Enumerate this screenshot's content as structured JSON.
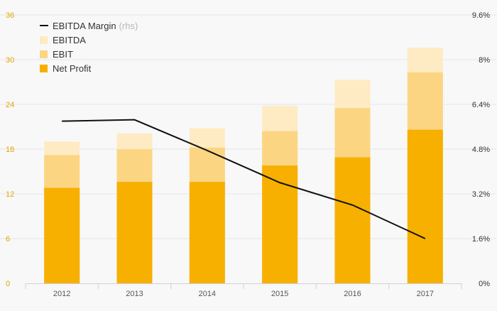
{
  "chart_data": {
    "type": "bar",
    "stacked": true,
    "categories": [
      "2012",
      "2013",
      "2014",
      "2015",
      "2016",
      "2017"
    ],
    "series": [
      {
        "name": "Net Profit",
        "kind": "bar",
        "color": "#f7b000",
        "values": [
          12.8,
          13.6,
          13.6,
          15.8,
          16.9,
          20.6
        ]
      },
      {
        "name": "EBIT",
        "kind": "bar",
        "color": "#fcd583",
        "values": [
          17.2,
          18.0,
          18.2,
          20.4,
          23.5,
          28.3
        ]
      },
      {
        "name": "EBITDA",
        "kind": "bar",
        "color": "#feebc3",
        "values": [
          19.0,
          20.1,
          20.8,
          23.8,
          27.3,
          31.6
        ]
      },
      {
        "name": "EBITDA Margin",
        "kind": "line",
        "axis": "right",
        "color": "#111111",
        "values": [
          5.8,
          5.85,
          4.75,
          3.6,
          2.8,
          1.6
        ]
      }
    ],
    "ylim": [
      0,
      36
    ],
    "yticks": [
      "0",
      "6",
      "12",
      "18",
      "24",
      "30",
      "36"
    ],
    "y2lim": [
      0,
      9.6
    ],
    "y2ticks": [
      "0%",
      "1.6%",
      "3.2%",
      "4.8%",
      "6.4%",
      "8%",
      "9.6%"
    ],
    "grid": true,
    "legend_position": "top-left",
    "legend": [
      {
        "label": "EBITDA Margin",
        "note": "(rhs)",
        "marker": "line",
        "color": "#111111"
      },
      {
        "label": "EBITDA",
        "marker": "box",
        "color": "#feebc3"
      },
      {
        "label": "EBIT",
        "marker": "box",
        "color": "#fcd583"
      },
      {
        "label": "Net Profit",
        "marker": "box",
        "color": "#f7b000"
      }
    ],
    "colors": {
      "left_tick_text": "#e5a400",
      "right_tick_text": "#333333",
      "x_tick_text": "#555555",
      "grid": "#e6e6e6",
      "axis": "#cfcfd8"
    }
  }
}
